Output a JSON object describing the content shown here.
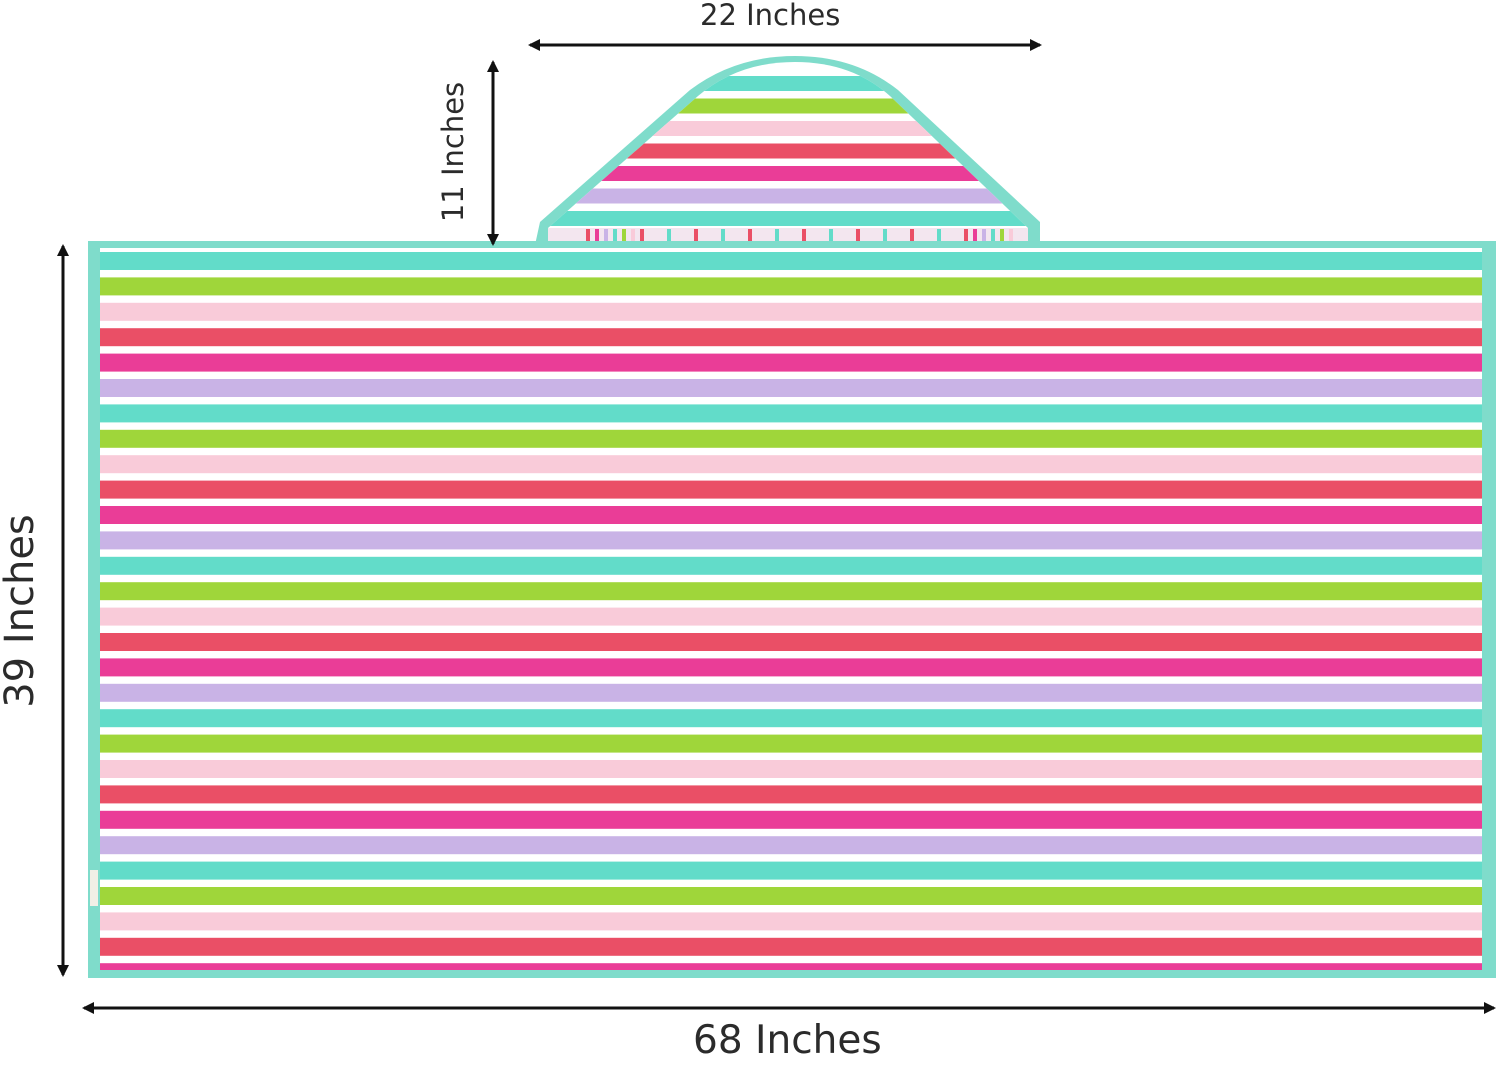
{
  "dimensions": {
    "hood_width": "22 Inches",
    "hood_height": "11 Inches",
    "towel_length": "39 Inches",
    "towel_width": "68 Inches"
  },
  "colors": {
    "trim": "#7fdccb",
    "stripes": [
      "#62dcc9",
      "#9fd63a",
      "#f9cbd9",
      "#ea4f66",
      "#ea3d97",
      "#c9b3e6"
    ],
    "separator": "#ffffff",
    "arrows": "#111111",
    "label_text": "#2b2b2b"
  },
  "icons": {
    "product": "hooded-towel",
    "arrows": "double-headed-arrow"
  }
}
